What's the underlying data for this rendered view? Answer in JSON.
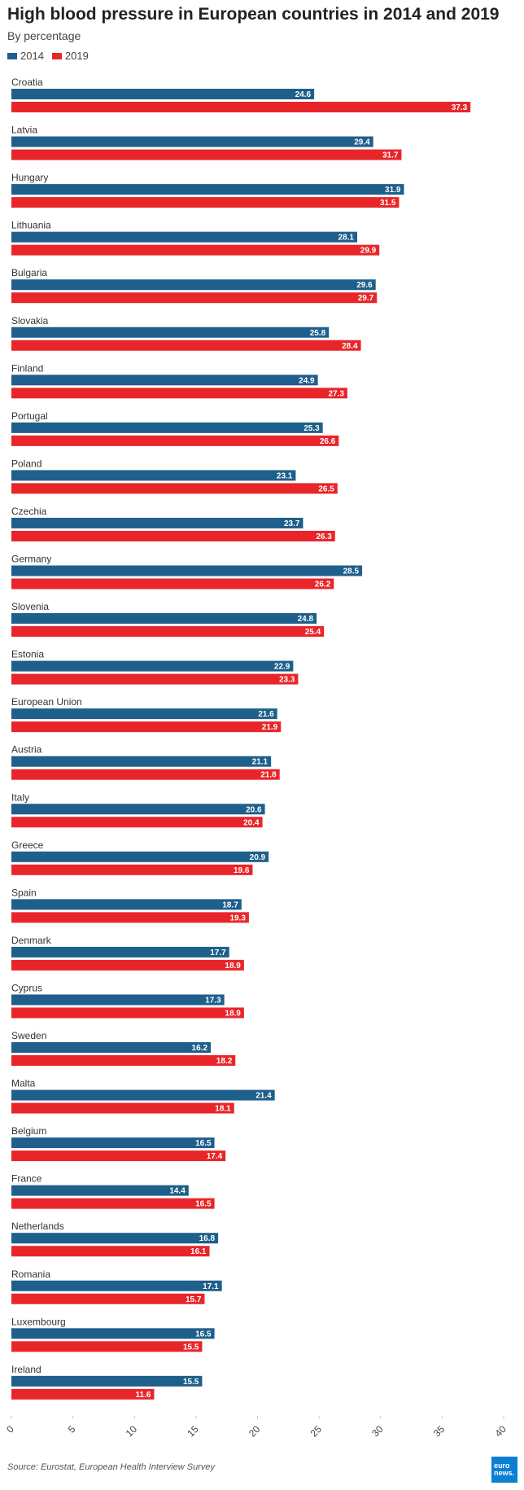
{
  "header": {
    "title": "High blood pressure in European countries in 2014 and 2019",
    "subtitle": "By percentage"
  },
  "legend": {
    "series_2014": "2014",
    "series_2019": "2019"
  },
  "source": "Source: Eurostat, European Health Interview Survey",
  "logo": {
    "line1": "euro",
    "line2": "news."
  },
  "colors": {
    "series_2014": "#1f5f8b",
    "series_2019": "#e8262a"
  },
  "chart_data": {
    "type": "bar",
    "orientation": "horizontal",
    "title": "High blood pressure in European countries in 2014 and 2019",
    "subtitle": "By percentage",
    "xlim": [
      0,
      40
    ],
    "xticks": [
      0,
      5,
      10,
      15,
      20,
      25,
      30,
      35,
      40
    ],
    "legend_position": "top-left",
    "grid": false,
    "categories": [
      "Croatia",
      "Latvia",
      "Hungary",
      "Lithuania",
      "Bulgaria",
      "Slovakia",
      "Finland",
      "Portugal",
      "Poland",
      "Czechia",
      "Germany",
      "Slovenia",
      "Estonia",
      "European Union",
      "Austria",
      "Italy",
      "Greece",
      "Spain",
      "Denmark",
      "Cyprus",
      "Sweden",
      "Malta",
      "Belgium",
      "France",
      "Netherlands",
      "Romania",
      "Luxembourg",
      "Ireland"
    ],
    "series": [
      {
        "name": "2014",
        "values": [
          24.6,
          29.4,
          31.9,
          28.1,
          29.6,
          25.8,
          24.9,
          25.3,
          23.1,
          23.7,
          28.5,
          24.8,
          22.9,
          21.6,
          21.1,
          20.6,
          20.9,
          18.7,
          17.7,
          17.3,
          16.2,
          21.4,
          16.5,
          14.4,
          16.8,
          17.1,
          16.5,
          15.5
        ]
      },
      {
        "name": "2019",
        "values": [
          37.3,
          31.7,
          31.5,
          29.9,
          29.7,
          28.4,
          27.3,
          26.6,
          26.5,
          26.3,
          26.2,
          25.4,
          23.3,
          21.9,
          21.8,
          20.4,
          19.6,
          19.3,
          18.9,
          18.9,
          18.2,
          18.1,
          17.4,
          16.5,
          16.1,
          15.7,
          15.5,
          11.6
        ]
      }
    ]
  }
}
